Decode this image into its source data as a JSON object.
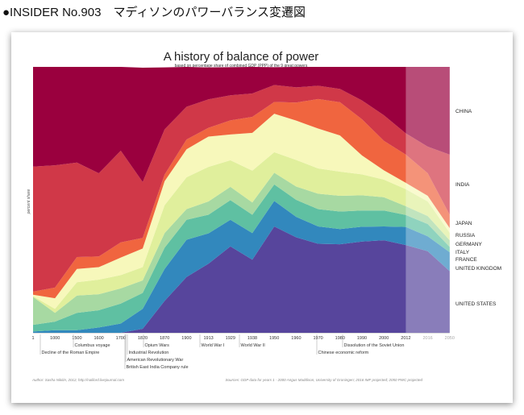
{
  "header": {
    "title": "●INSIDER No.903　マディソンのパワーバランス変遷図"
  },
  "chart_data": {
    "type": "area",
    "stacked": true,
    "title": "A history of  balance of power",
    "subtitle": "based on percentage share of combined GDP (PPP) of the 9 great powers",
    "ylabel": "percent share",
    "xlabel": "",
    "ylim": [
      0,
      100
    ],
    "x": [
      "1",
      "1000",
      "1500",
      "1600",
      "1700",
      "1820",
      "1870",
      "1900",
      "1913",
      "1929",
      "1938",
      "1950",
      "1960",
      "1970",
      "1980",
      "1990",
      "2000",
      "2012",
      "2016",
      "2050"
    ],
    "projected_from": "2012",
    "series": [
      {
        "name": "UNITED STATES",
        "color": "#57459c",
        "values": [
          0,
          0,
          0,
          0,
          0,
          1.5,
          12,
          21,
          26,
          32.5,
          27.5,
          40,
          35.9,
          33.5,
          33.3,
          34.3,
          34.8,
          33,
          30.7,
          23.2
        ]
      },
      {
        "name": "UNITED KINGDOM",
        "color": "#3288bd",
        "values": [
          0.5,
          1,
          1,
          2,
          3.5,
          7.5,
          12,
          14,
          11.4,
          10,
          10,
          9.6,
          7.7,
          6.5,
          5.7,
          5.6,
          5.2,
          6.8,
          5.6,
          7.1
        ]
      },
      {
        "name": "FRANCE",
        "color": "#5fc0a2",
        "values": [
          2.5,
          3.2,
          6.5,
          6.5,
          7.5,
          6,
          8,
          7.5,
          7,
          7.4,
          6.9,
          6.2,
          6.4,
          6.5,
          6.6,
          6.1,
          6,
          4.5,
          4.6,
          2
        ]
      },
      {
        "name": "ITALY",
        "color": "#a7d9a2",
        "values": [
          10.5,
          3.3,
          6.5,
          6,
          5.7,
          4.7,
          5.5,
          4,
          5,
          5,
          4.6,
          4.4,
          5,
          5.8,
          5.9,
          5.7,
          5,
          3.3,
          3,
          2.5
        ]
      },
      {
        "name": "GERMANY",
        "color": "#e0ef9c",
        "values": [
          0.3,
          1.5,
          5,
          5.5,
          5,
          5,
          10.5,
          12,
          13,
          10,
          12,
          7.7,
          10,
          9.5,
          9.1,
          7.9,
          6.6,
          6.4,
          5.5,
          2.8
        ]
      },
      {
        "name": "RUSSIA",
        "color": "#f7f8bb",
        "values": [
          0.5,
          4,
          5,
          4.7,
          6.6,
          7,
          9,
          10.5,
          11.4,
          9.7,
          14.2,
          14.5,
          14.8,
          15,
          13.6,
          7.1,
          3.5,
          2.4,
          2.1,
          1.8
        ]
      },
      {
        "name": "JAPAN",
        "color": "#f0653f",
        "values": [
          1.2,
          4,
          4.5,
          4,
          5.7,
          4,
          2.5,
          3.7,
          3.3,
          5.3,
          6,
          4.4,
          6.8,
          11.1,
          12.5,
          13.6,
          11.1,
          10.6,
          8.5,
          5
        ]
      },
      {
        "name": "INDIA",
        "color": "#d03848",
        "values": [
          47,
          46,
          35.5,
          31.3,
          34.5,
          21,
          17,
          12.3,
          10.7,
          9.4,
          8.8,
          6.4,
          5.7,
          5,
          5,
          7.1,
          9.6,
          8,
          10,
          22.6
        ]
      },
      {
        "name": "CHINA",
        "color": "#9a003e",
        "values": [
          37.5,
          37,
          36,
          40,
          31.5,
          43,
          23.3,
          15,
          12,
          10.6,
          10,
          6.7,
          7.7,
          7.1,
          8.3,
          12.6,
          18.2,
          25,
          30,
          33
        ]
      }
    ],
    "annotations": [
      {
        "year": "1000",
        "text": "Decline of the Roman Empire"
      },
      {
        "year": "1500",
        "text": "Columbus voyage"
      },
      {
        "year": "1820",
        "text": "Opium Wars"
      },
      {
        "year": "1820",
        "text": "Industrial Revolution"
      },
      {
        "year": "1820",
        "text": "American Revolutionary War"
      },
      {
        "year": "1820",
        "text": "British East India Company rule"
      },
      {
        "year": "1913",
        "text": "World War I"
      },
      {
        "year": "1938",
        "text": "World War II"
      },
      {
        "year": "1990",
        "text": "Dissolution of the Soviet Union"
      },
      {
        "year": "1980",
        "text": "Chinese economic reform"
      }
    ],
    "author": "Author:  Sasha Nikitin, 2012, http://nalilord.livejournal.com",
    "sources": "Sources:  GDP data for years 1 - 2000 Angus Maddison, University of Groningen;  2016 IMF projected;  2050 PWC projected"
  }
}
